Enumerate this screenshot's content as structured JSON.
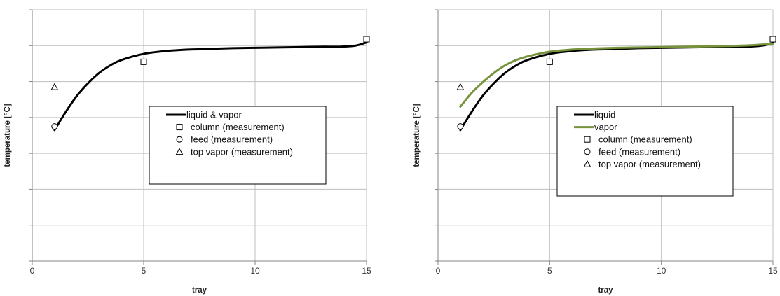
{
  "chart_data": [
    {
      "type": "line",
      "xlabel": "tray",
      "ylabel": "temperature [°C]",
      "xlim": [
        0,
        15
      ],
      "ylim": [
        0,
        7
      ],
      "x_ticks": [
        "0",
        "5",
        "10",
        "15"
      ],
      "grid": true,
      "legend_position": "center-right",
      "series": [
        {
          "name": "liquid & vapor",
          "kind": "line",
          "color": "#000000",
          "x": [
            1,
            1.5,
            2,
            2.5,
            3,
            3.5,
            4,
            5,
            6,
            7,
            8,
            9,
            10,
            11,
            12,
            13,
            13.8,
            14.5,
            15
          ],
          "y": [
            3.65,
            4.15,
            4.6,
            4.95,
            5.24,
            5.45,
            5.6,
            5.77,
            5.85,
            5.89,
            5.91,
            5.93,
            5.94,
            5.95,
            5.96,
            5.97,
            5.97,
            6.0,
            6.09
          ]
        },
        {
          "name": "column (measurement)",
          "kind": "marker",
          "marker": "square",
          "x": [
            5,
            15
          ],
          "y": [
            5.55,
            6.18
          ]
        },
        {
          "name": "feed (measurement)",
          "kind": "marker",
          "marker": "circle",
          "x": [
            1
          ],
          "y": [
            3.75
          ]
        },
        {
          "name": "top vapor (measurement)",
          "kind": "marker",
          "marker": "triangle",
          "x": [
            1
          ],
          "y": [
            4.85
          ]
        }
      ]
    },
    {
      "type": "line",
      "xlabel": "tray",
      "ylabel": "temperature [°C]",
      "xlim": [
        0,
        15
      ],
      "ylim": [
        0,
        7
      ],
      "x_ticks": [
        "0",
        "5",
        "10",
        "15"
      ],
      "grid": true,
      "legend_position": "center-right",
      "series": [
        {
          "name": "liquid",
          "kind": "line",
          "color": "#000000",
          "x": [
            1,
            1.5,
            2,
            2.5,
            3,
            3.5,
            4,
            5,
            6,
            7,
            8,
            9,
            10,
            11,
            12,
            13,
            13.8,
            14.5,
            15
          ],
          "y": [
            3.65,
            4.15,
            4.6,
            4.95,
            5.24,
            5.45,
            5.6,
            5.77,
            5.85,
            5.89,
            5.91,
            5.93,
            5.94,
            5.95,
            5.96,
            5.97,
            5.97,
            6.0,
            6.07
          ]
        },
        {
          "name": "vapor",
          "kind": "line",
          "color": "#77933c",
          "x": [
            1,
            1.5,
            2,
            2.5,
            3,
            3.5,
            4,
            5,
            6,
            7,
            8,
            9,
            10,
            11,
            12,
            13,
            14,
            15
          ],
          "y": [
            4.3,
            4.68,
            4.98,
            5.24,
            5.45,
            5.6,
            5.7,
            5.83,
            5.89,
            5.92,
            5.94,
            5.95,
            5.96,
            5.97,
            5.98,
            5.99,
            6.01,
            6.05
          ]
        },
        {
          "name": "column (measurement)",
          "kind": "marker",
          "marker": "square",
          "x": [
            5,
            15
          ],
          "y": [
            5.55,
            6.18
          ]
        },
        {
          "name": "feed (measurement)",
          "kind": "marker",
          "marker": "circle",
          "x": [
            1
          ],
          "y": [
            3.75
          ]
        },
        {
          "name": "top vapor (measurement)",
          "kind": "marker",
          "marker": "triangle",
          "x": [
            1
          ],
          "y": [
            4.85
          ]
        }
      ]
    }
  ]
}
